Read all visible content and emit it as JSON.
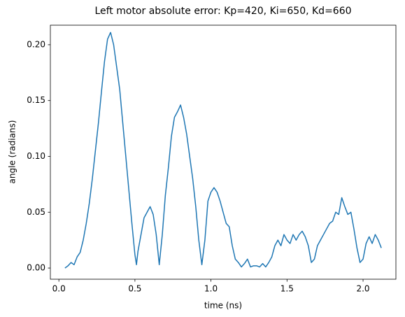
{
  "chart_data": {
    "type": "line",
    "title": "Left motor absolute error: Kp=420, Ki=650, Kd=660",
    "x_label": "time (ns)",
    "y_label": "angle (radians)",
    "x": [
      0.04,
      0.06,
      0.08,
      0.1,
      0.12,
      0.14,
      0.16,
      0.18,
      0.2,
      0.22,
      0.24,
      0.26,
      0.28,
      0.3,
      0.32,
      0.34,
      0.36,
      0.38,
      0.4,
      0.42,
      0.44,
      0.46,
      0.48,
      0.5,
      0.51,
      0.52,
      0.54,
      0.56,
      0.58,
      0.6,
      0.62,
      0.64,
      0.66,
      0.68,
      0.7,
      0.72,
      0.74,
      0.76,
      0.78,
      0.8,
      0.82,
      0.84,
      0.86,
      0.88,
      0.9,
      0.92,
      0.94,
      0.96,
      0.98,
      1.0,
      1.02,
      1.04,
      1.06,
      1.08,
      1.1,
      1.12,
      1.14,
      1.16,
      1.18,
      1.2,
      1.22,
      1.24,
      1.26,
      1.28,
      1.3,
      1.32,
      1.34,
      1.36,
      1.38,
      1.4,
      1.42,
      1.44,
      1.46,
      1.48,
      1.5,
      1.52,
      1.54,
      1.56,
      1.58,
      1.6,
      1.62,
      1.64,
      1.66,
      1.68,
      1.7,
      1.72,
      1.74,
      1.76,
      1.78,
      1.8,
      1.82,
      1.84,
      1.86,
      1.88,
      1.9,
      1.92,
      1.94,
      1.96,
      1.98,
      2.0,
      2.02,
      2.04,
      2.06,
      2.08,
      2.1,
      2.12
    ],
    "series": [
      {
        "name": "error",
        "color": "#1f77b4",
        "values": [
          0.0,
          0.002,
          0.005,
          0.003,
          0.01,
          0.014,
          0.025,
          0.04,
          0.058,
          0.08,
          0.105,
          0.13,
          0.158,
          0.185,
          0.205,
          0.211,
          0.2,
          0.18,
          0.16,
          0.13,
          0.1,
          0.07,
          0.04,
          0.012,
          0.003,
          0.015,
          0.03,
          0.045,
          0.05,
          0.055,
          0.048,
          0.03,
          0.003,
          0.03,
          0.065,
          0.09,
          0.118,
          0.135,
          0.14,
          0.146,
          0.135,
          0.12,
          0.1,
          0.08,
          0.055,
          0.025,
          0.003,
          0.025,
          0.06,
          0.068,
          0.072,
          0.068,
          0.06,
          0.05,
          0.04,
          0.037,
          0.02,
          0.008,
          0.005,
          0.001,
          0.004,
          0.008,
          0.001,
          0.002,
          0.002,
          0.001,
          0.004,
          0.001,
          0.005,
          0.01,
          0.02,
          0.025,
          0.02,
          0.03,
          0.025,
          0.022,
          0.03,
          0.025,
          0.03,
          0.033,
          0.028,
          0.02,
          0.005,
          0.008,
          0.02,
          0.025,
          0.03,
          0.035,
          0.04,
          0.042,
          0.05,
          0.048,
          0.063,
          0.055,
          0.048,
          0.05,
          0.035,
          0.018,
          0.005,
          0.008,
          0.022,
          0.028,
          0.022,
          0.03,
          0.025,
          0.018
        ]
      }
    ],
    "xlim": [
      -0.056,
      2.216
    ],
    "ylim": [
      -0.01,
      0.2175
    ],
    "xticks": [
      {
        "value": 0,
        "label": "0.0"
      },
      0.5,
      {
        "value": 1,
        "label": "1.0"
      },
      1.5,
      {
        "value": 2,
        "label": "2.0"
      }
    ],
    "yticks": [
      {
        "value": 0,
        "label": "0.00"
      },
      0.05,
      {
        "value": 0.1,
        "label": "0.10"
      },
      0.15,
      {
        "value": 0.2,
        "label": "0.20"
      }
    ]
  }
}
